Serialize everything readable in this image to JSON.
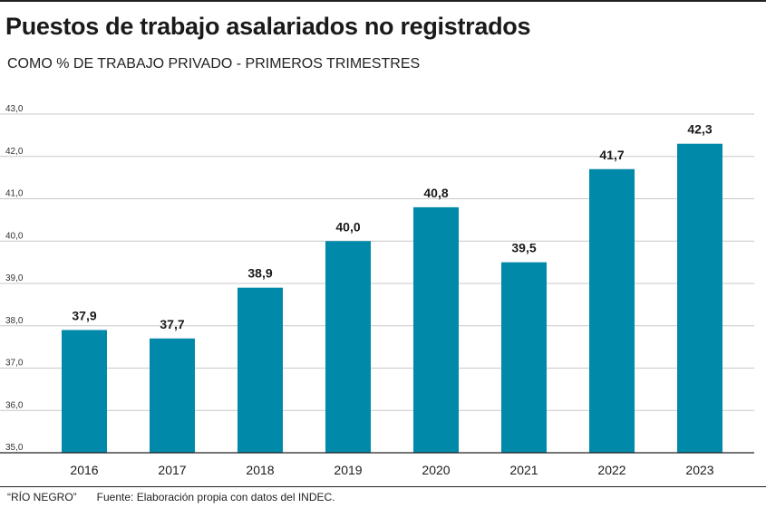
{
  "header": {
    "title": "Puestos de trabajo asalariados no registrados",
    "subtitle": "COMO % DE TRABAJO PRIVADO - PRIMEROS TRIMESTRES"
  },
  "footer": {
    "brand": "“RÍO NEGRO”",
    "source": "Fuente:  Elaboración propia con datos del INDEC."
  },
  "chart_data": {
    "type": "bar",
    "categories": [
      "2016",
      "2017",
      "2018",
      "2019",
      "2020",
      "2021",
      "2022",
      "2023"
    ],
    "values": [
      37.9,
      37.7,
      38.9,
      40.0,
      40.8,
      39.5,
      41.7,
      42.3
    ],
    "value_labels": [
      "37,9",
      "37,7",
      "38,9",
      "40,0",
      "40,8",
      "39,5",
      "41,7",
      "42,3"
    ],
    "yticks": [
      "35,0",
      "36,0",
      "37,0",
      "38,0",
      "39,0",
      "40,0",
      "41,0",
      "42,0",
      "43,0"
    ],
    "ylim": [
      35,
      43
    ],
    "grid": true,
    "bar_color": "#0089a8",
    "grid_color": "#c8c8c8"
  }
}
